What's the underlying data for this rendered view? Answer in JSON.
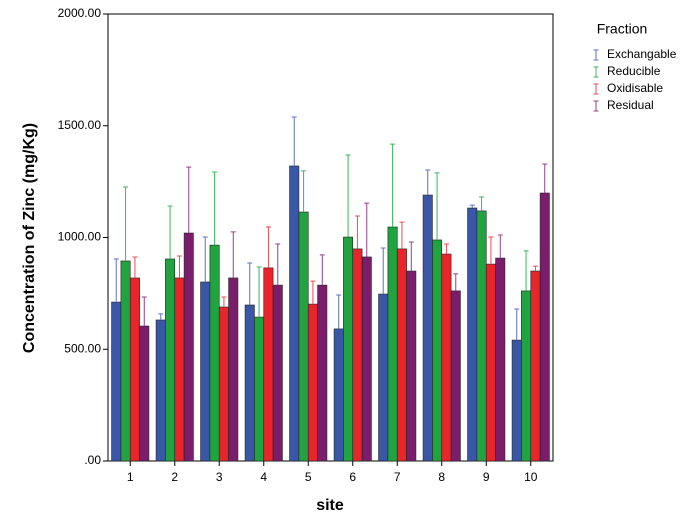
{
  "chart_data": {
    "type": "bar",
    "x_label": "site",
    "y_label": "Concentration of Zinc (mg/Kg)",
    "legend_title": "Fraction",
    "legend_position": "right",
    "categories": [
      "1",
      "2",
      "3",
      "4",
      "5",
      "6",
      "7",
      "8",
      "9",
      "10"
    ],
    "series": [
      {
        "name": "Exchangable",
        "color": "#3a56a6",
        "error_color": "#5b73c0",
        "values": [
          711,
          631,
          801,
          698,
          1320,
          591,
          747,
          1190,
          1132,
          541
        ],
        "errors": [
          193,
          27,
          201,
          188,
          219,
          152,
          206,
          112,
          13,
          139
        ]
      },
      {
        "name": "Reducible",
        "color": "#21a33f",
        "error_color": "#3cb85a",
        "values": [
          895,
          904,
          966,
          644,
          1114,
          1002,
          1047,
          989,
          1119,
          761
        ],
        "errors": [
          331,
          237,
          327,
          224,
          184,
          367,
          371,
          300,
          62,
          179
        ]
      },
      {
        "name": "Oxidisable",
        "color": "#e8252b",
        "error_color": "#ef4a50",
        "values": [
          819,
          819,
          689,
          864,
          702,
          949,
          949,
          926,
          881,
          850
        ],
        "errors": [
          94,
          98,
          45,
          183,
          103,
          147,
          120,
          45,
          121,
          22
        ]
      },
      {
        "name": "Residual",
        "color": "#7a1e6b",
        "error_color": "#94408a",
        "values": [
          604,
          1020,
          819,
          787,
          787,
          913,
          850,
          761,
          908,
          1199
        ],
        "errors": [
          130,
          295,
          206,
          184,
          135,
          241,
          130,
          76,
          103,
          130
        ]
      }
    ],
    "ylim": [
      0,
      2000
    ],
    "yticks": [
      {
        "value": 0,
        "label": ".00"
      },
      {
        "value": 500,
        "label": "500.00"
      },
      {
        "value": 1000,
        "label": "1000.00"
      },
      {
        "value": 1500,
        "label": "1500.00"
      },
      {
        "value": 2000,
        "label": "2000.00"
      }
    ]
  }
}
